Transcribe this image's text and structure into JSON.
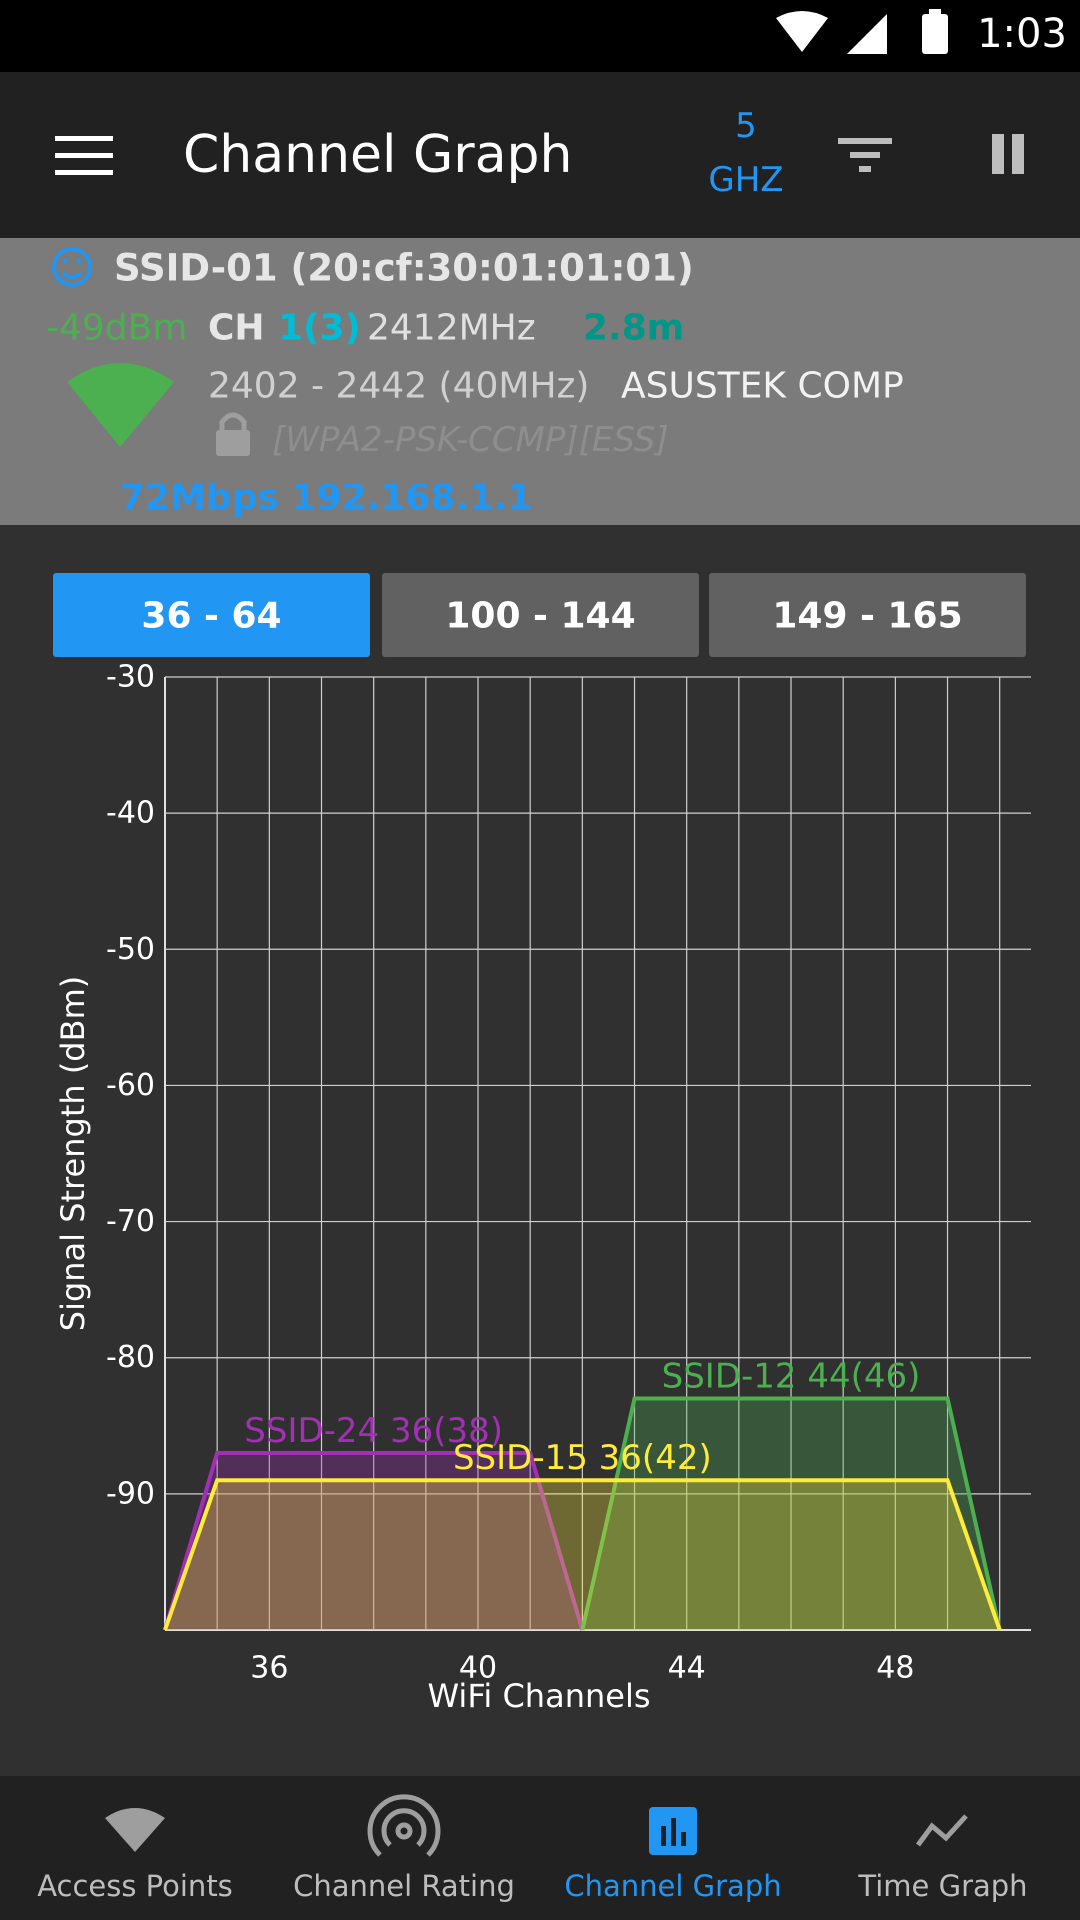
{
  "status_bar": {
    "time": "1:03"
  },
  "toolbar": {
    "title": "Channel Graph",
    "band_value": "5",
    "band_unit": "GHZ"
  },
  "connection": {
    "ssid": "SSID-01 (20:cf:30:01:01:01)",
    "signal": "-49dBm",
    "channel_label": "CH",
    "channel": "1(3)",
    "frequency": "2412MHz",
    "distance": "2.8m",
    "range": "2402 - 2442 (40MHz)",
    "vendor": "ASUSTEK COMP",
    "security": "[WPA2-PSK-CCMP][ESS]",
    "speed_ip": "72Mbps 192.168.1.1"
  },
  "tabs": [
    {
      "label": "36 - 64",
      "active": true
    },
    {
      "label": "100 - 144",
      "active": false
    },
    {
      "label": "149 - 165",
      "active": false
    }
  ],
  "chart_data": {
    "type": "area",
    "x_label": "WiFi Channels",
    "y_label": "Signal Strength (dBm)",
    "xlim": [
      34,
      50.6
    ],
    "xticks": [
      36,
      40,
      44,
      48
    ],
    "xgrid": [
      35,
      36,
      37,
      38,
      39,
      40,
      41,
      42,
      43,
      44,
      45,
      46,
      47,
      48,
      49,
      50
    ],
    "ylim": [
      -100,
      -30
    ],
    "yticks": [
      -30,
      -40,
      -50,
      -60,
      -70,
      -80,
      -90
    ],
    "grid": true,
    "series": [
      {
        "name": "SSID-24 36(38)",
        "color": "#a22fb5",
        "x": [
          34,
          35,
          41,
          42
        ],
        "values": [
          -100,
          -87,
          -87,
          -100
        ]
      },
      {
        "name": "SSID-12 44(46)",
        "color": "#4caf50",
        "x": [
          42,
          43,
          49,
          50
        ],
        "values": [
          -100,
          -83,
          -83,
          -100
        ]
      },
      {
        "name": "SSID-15 36(42)",
        "color": "#ffeb3b",
        "x": [
          34,
          35,
          49,
          50
        ],
        "values": [
          -100,
          -89,
          -89,
          -100
        ]
      }
    ]
  },
  "bottom_nav": [
    {
      "label": "Access Points",
      "active": false
    },
    {
      "label": "Channel Rating",
      "active": false
    },
    {
      "label": "Channel Graph",
      "active": true
    },
    {
      "label": "Time Graph",
      "active": false
    }
  ]
}
